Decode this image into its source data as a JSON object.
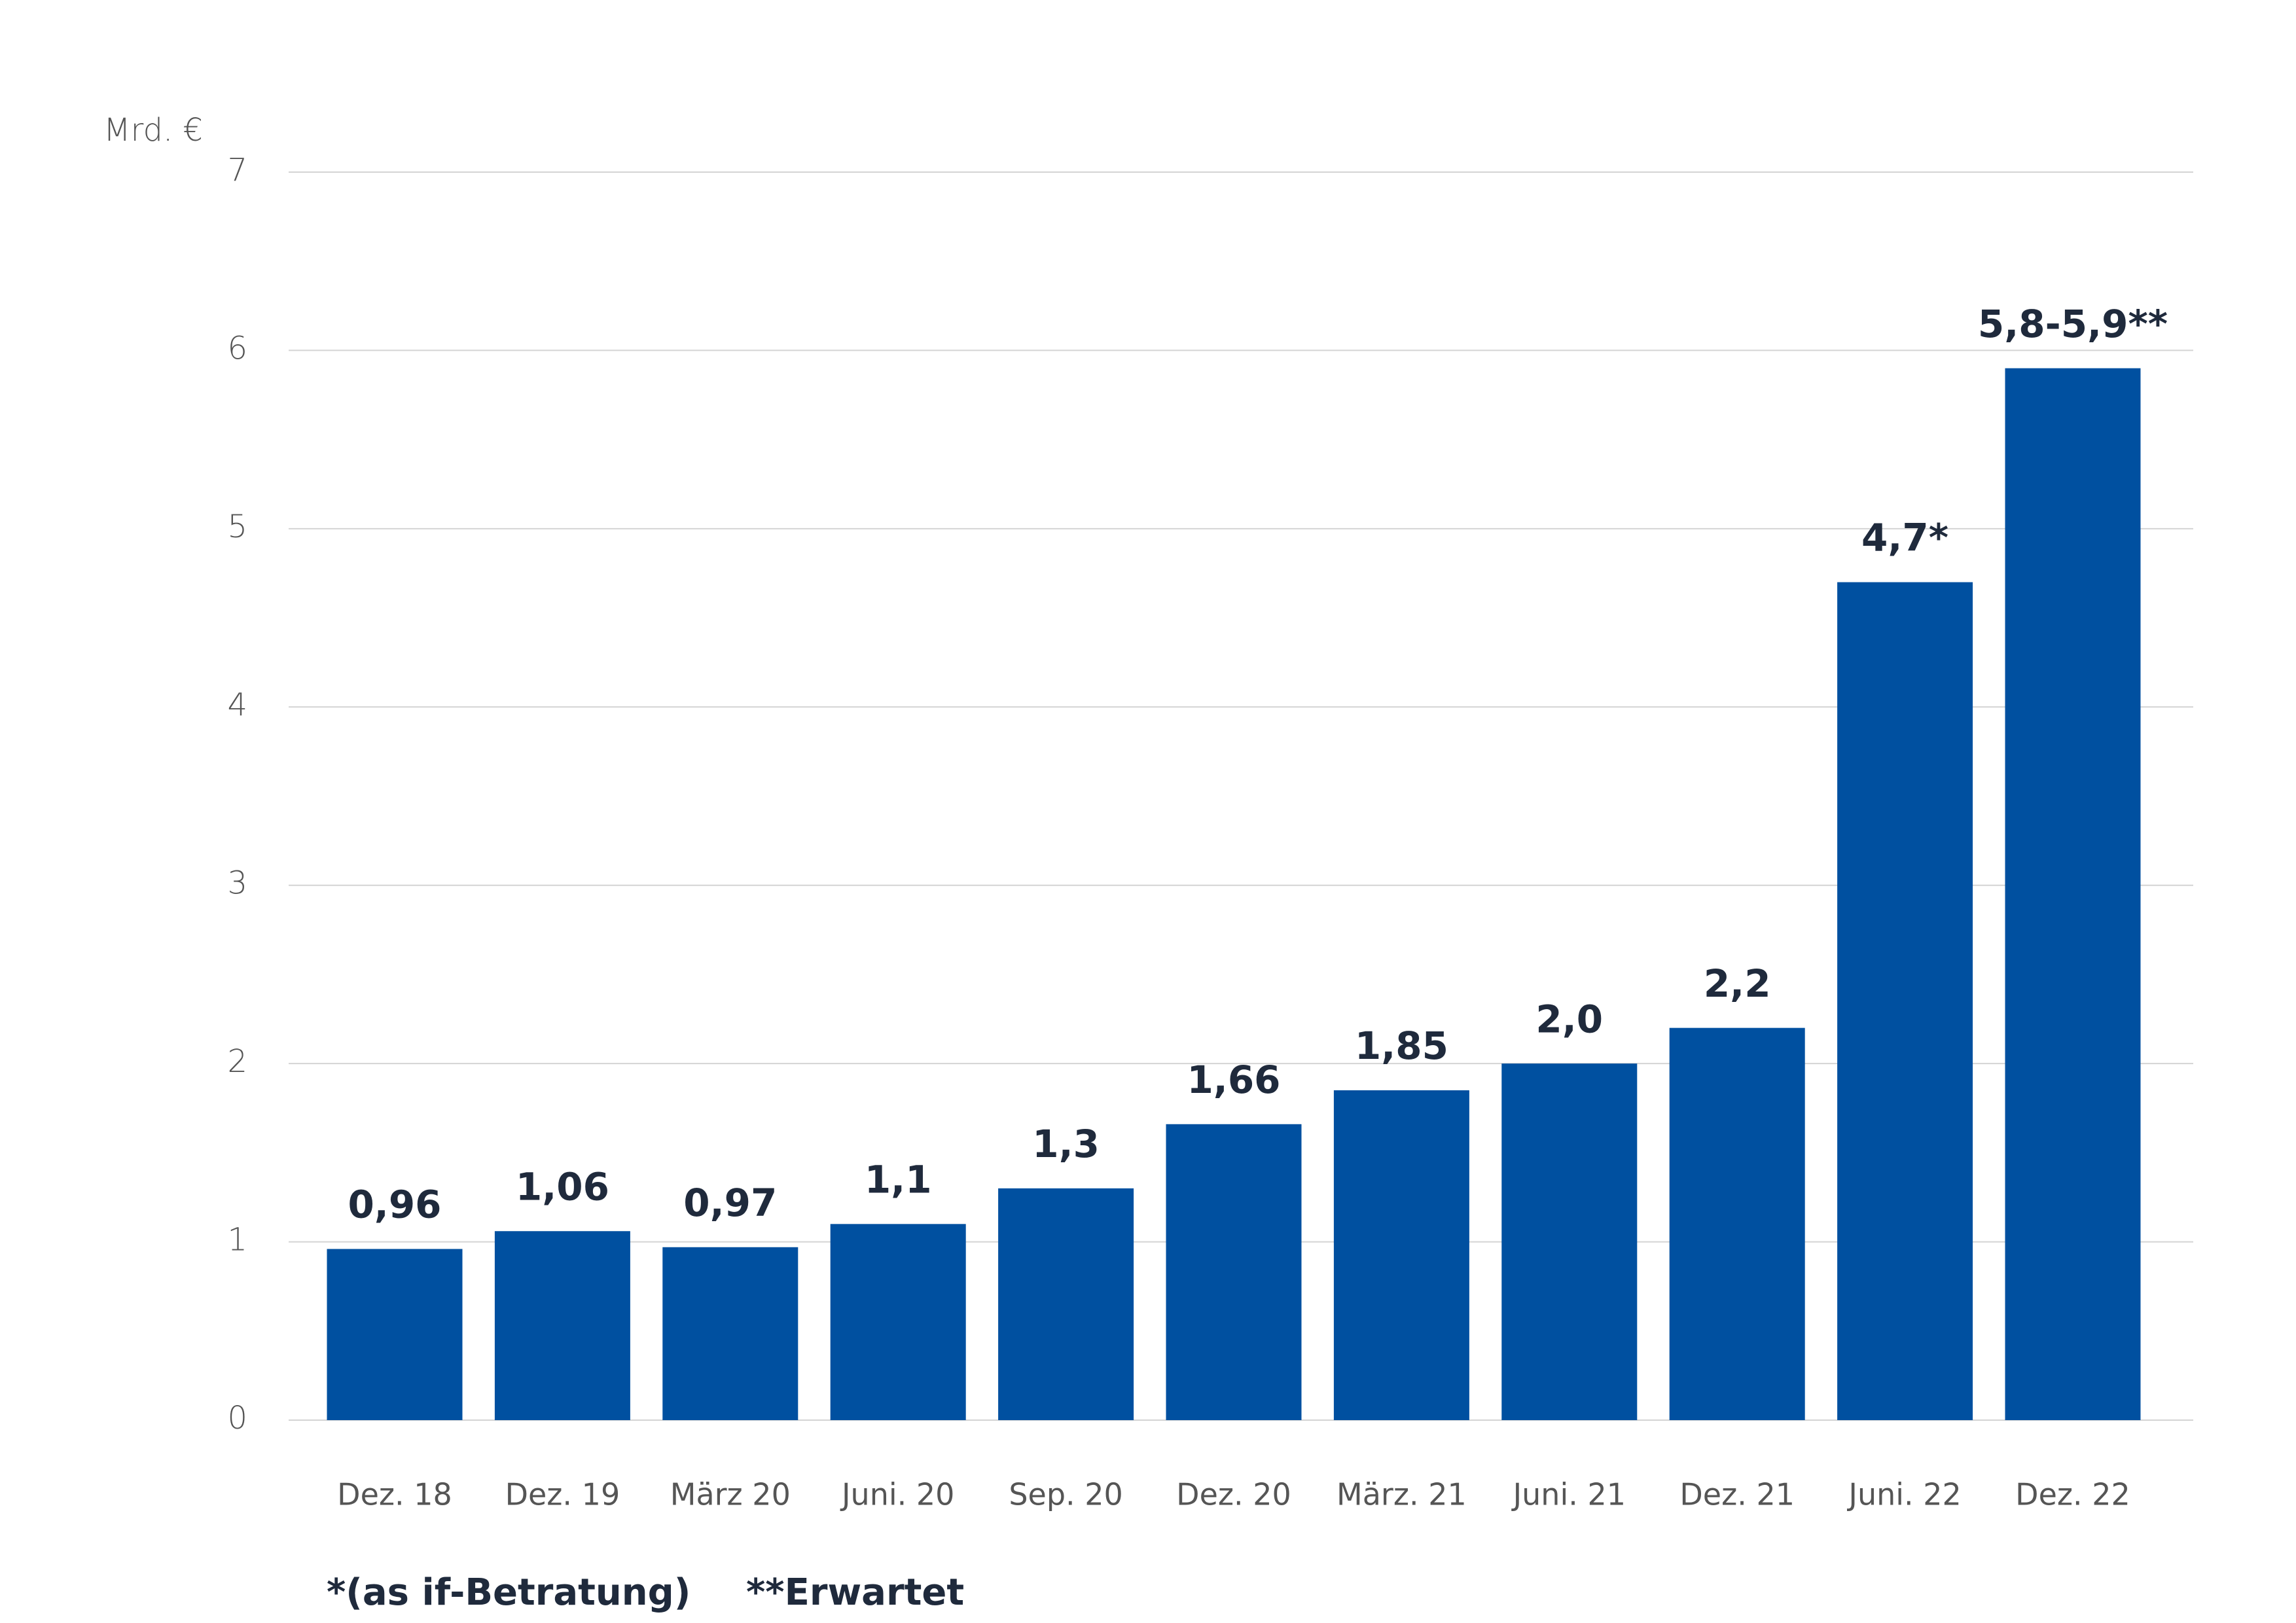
{
  "chart_data": {
    "type": "bar",
    "y_label": "Mrd. €",
    "categories": [
      "Dez. 18",
      "Dez. 19",
      "März 20",
      "Juni. 20",
      "Sep. 20",
      "Dez. 20",
      "März. 21",
      "Juni. 21",
      "Dez. 21",
      "Juni. 22",
      "Dez. 22"
    ],
    "values": [
      0.96,
      1.06,
      0.97,
      1.1,
      1.3,
      1.66,
      1.85,
      2.0,
      2.2,
      4.7,
      5.9
    ],
    "value_labels": [
      "0,96",
      "1,06",
      "0,97",
      "1,1",
      "1,3",
      "1,66",
      "1,85",
      "2,0",
      "2,2",
      "4,7*",
      "5,8-5,9**"
    ],
    "color": "#0050a0",
    "ylim": [
      0,
      7
    ],
    "yticks": [
      0,
      1,
      2,
      3,
      4,
      5,
      6,
      7
    ],
    "grid": true,
    "notes": [
      "*(as if-Betratung)",
      "**Erwartet"
    ]
  }
}
